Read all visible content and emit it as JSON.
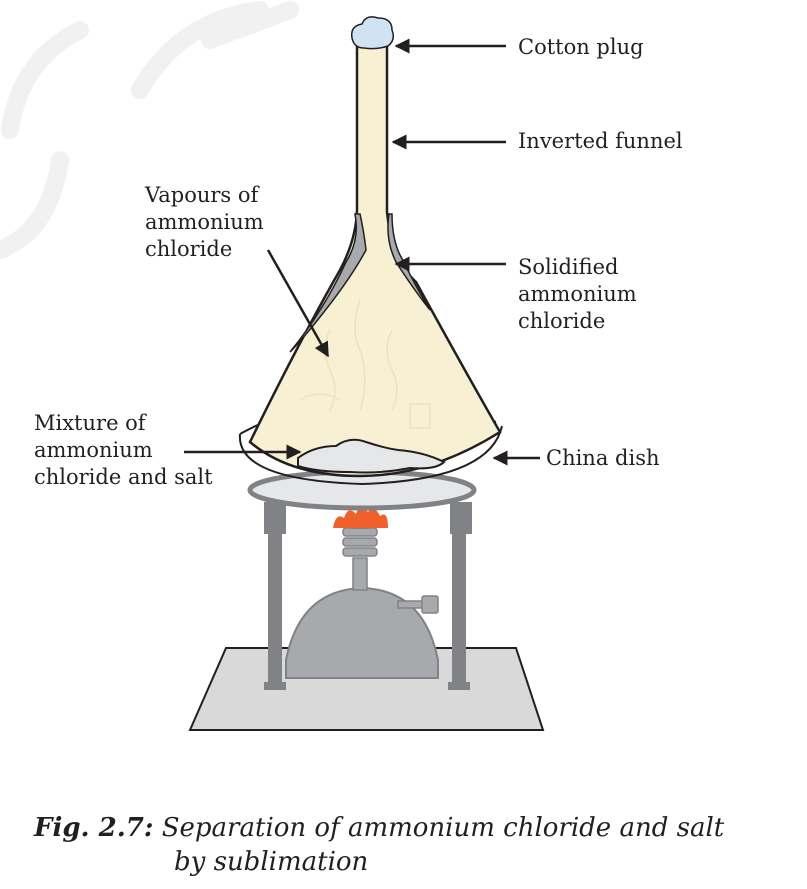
{
  "labels": {
    "cotton_plug": "Cotton plug",
    "inverted_funnel": "Inverted funnel",
    "vapours": "Vapours of\nammonium\nchloride",
    "solidified": "Solidified\nammonium\nchloride",
    "mixture": "Mixture of\nammonium\nchloride and salt",
    "china_dish": "China dish"
  },
  "caption": {
    "figure_number": "Fig. 2.7:",
    "text_line1": "Separation of ammonium chloride and salt",
    "text_line2": "by sublimation"
  },
  "colors": {
    "funnel_fill": "#f7f0d2",
    "solid_deposit": "#a7a9ac",
    "cotton": "#cfe3f2",
    "flame": "#f0602b",
    "burner": "#a7a9ac",
    "stand": "#808285",
    "base_plate": "#d9d9d9"
  }
}
